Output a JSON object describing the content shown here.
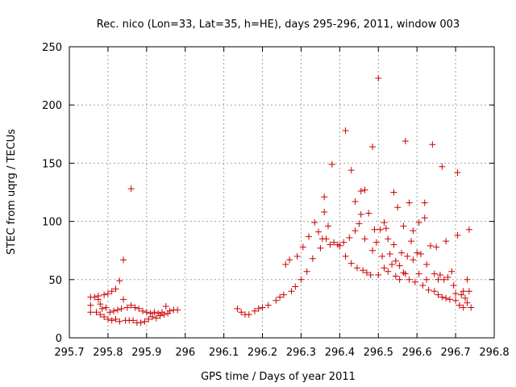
{
  "chart_data": {
    "type": "scatter",
    "title": "Rec. nico (Lon=33, Lat=35, h=HE), days 295-296, 2011, window 003",
    "xlabel": "GPS time / Days of year 2011",
    "ylabel": "STEC from uqrg / TECUs",
    "xlim": [
      295.7,
      296.8
    ],
    "ylim": [
      0,
      250
    ],
    "xticks": [
      "295.7",
      "295.8",
      "295.9",
      "296",
      "296.1",
      "296.2",
      "296.3",
      "296.4",
      "296.5",
      "296.6",
      "296.7",
      "296.8"
    ],
    "yticks": [
      "0",
      "50",
      "100",
      "150",
      "200",
      "250"
    ],
    "grid": true,
    "marker": "+",
    "color": "#cc0000",
    "series": [
      {
        "points": [
          [
            295.755,
            35
          ],
          [
            295.755,
            28
          ],
          [
            295.755,
            22
          ],
          [
            295.765,
            35
          ],
          [
            295.77,
            22
          ],
          [
            295.775,
            33
          ],
          [
            295.775,
            36
          ],
          [
            295.78,
            29
          ],
          [
            295.78,
            20
          ],
          [
            295.785,
            25
          ],
          [
            295.79,
            37
          ],
          [
            295.79,
            18
          ],
          [
            295.795,
            26
          ],
          [
            295.8,
            38
          ],
          [
            295.8,
            16
          ],
          [
            295.805,
            22
          ],
          [
            295.81,
            40
          ],
          [
            295.81,
            15
          ],
          [
            295.815,
            23
          ],
          [
            295.82,
            42
          ],
          [
            295.82,
            16
          ],
          [
            295.825,
            24
          ],
          [
            295.83,
            49
          ],
          [
            295.83,
            14
          ],
          [
            295.835,
            25
          ],
          [
            295.84,
            33
          ],
          [
            295.84,
            67
          ],
          [
            295.845,
            15
          ],
          [
            295.85,
            26
          ],
          [
            295.855,
            15
          ],
          [
            295.86,
            128
          ],
          [
            295.86,
            28
          ],
          [
            295.865,
            15
          ],
          [
            295.87,
            26
          ],
          [
            295.875,
            13
          ],
          [
            295.88,
            25
          ],
          [
            295.885,
            13
          ],
          [
            295.89,
            23
          ],
          [
            295.895,
            14
          ],
          [
            295.9,
            22
          ],
          [
            295.905,
            16
          ],
          [
            295.91,
            21
          ],
          [
            295.915,
            18
          ],
          [
            295.92,
            22
          ],
          [
            295.925,
            17
          ],
          [
            295.93,
            21
          ],
          [
            295.935,
            19
          ],
          [
            295.94,
            22
          ],
          [
            295.945,
            20
          ],
          [
            295.95,
            27
          ],
          [
            295.955,
            21
          ],
          [
            295.96,
            23
          ],
          [
            295.97,
            24
          ],
          [
            295.98,
            24
          ],
          [
            296.135,
            25
          ],
          [
            296.145,
            22
          ],
          [
            296.155,
            20
          ],
          [
            296.165,
            20
          ],
          [
            296.18,
            23
          ],
          [
            296.19,
            25
          ],
          [
            296.2,
            26
          ],
          [
            296.215,
            28
          ],
          [
            296.235,
            32
          ],
          [
            296.245,
            35
          ],
          [
            296.255,
            37
          ],
          [
            296.26,
            63
          ],
          [
            296.27,
            67
          ],
          [
            296.275,
            40
          ],
          [
            296.285,
            44
          ],
          [
            296.29,
            70
          ],
          [
            296.3,
            50
          ],
          [
            296.305,
            78
          ],
          [
            296.315,
            57
          ],
          [
            296.32,
            87
          ],
          [
            296.33,
            68
          ],
          [
            296.335,
            99
          ],
          [
            296.345,
            91
          ],
          [
            296.35,
            77
          ],
          [
            296.355,
            85
          ],
          [
            296.36,
            121
          ],
          [
            296.36,
            108
          ],
          [
            296.365,
            85
          ],
          [
            296.37,
            96
          ],
          [
            296.375,
            80
          ],
          [
            296.38,
            149
          ],
          [
            296.385,
            82
          ],
          [
            296.395,
            80
          ],
          [
            296.4,
            79
          ],
          [
            296.41,
            82
          ],
          [
            296.415,
            178
          ],
          [
            296.415,
            70
          ],
          [
            296.425,
            86
          ],
          [
            296.43,
            144
          ],
          [
            296.43,
            64
          ],
          [
            296.44,
            117
          ],
          [
            296.44,
            92
          ],
          [
            296.445,
            60
          ],
          [
            296.45,
            98
          ],
          [
            296.455,
            126
          ],
          [
            296.455,
            106
          ],
          [
            296.46,
            58
          ],
          [
            296.465,
            127
          ],
          [
            296.465,
            85
          ],
          [
            296.47,
            56
          ],
          [
            296.475,
            107
          ],
          [
            296.48,
            54
          ],
          [
            296.485,
            164
          ],
          [
            296.485,
            75
          ],
          [
            296.49,
            93
          ],
          [
            296.495,
            82
          ],
          [
            296.5,
            223
          ],
          [
            296.5,
            54
          ],
          [
            296.505,
            93
          ],
          [
            296.51,
            70
          ],
          [
            296.515,
            99
          ],
          [
            296.515,
            60
          ],
          [
            296.52,
            94
          ],
          [
            296.525,
            85
          ],
          [
            296.525,
            57
          ],
          [
            296.53,
            72
          ],
          [
            296.535,
            63
          ],
          [
            296.54,
            125
          ],
          [
            296.54,
            80
          ],
          [
            296.545,
            66
          ],
          [
            296.545,
            53
          ],
          [
            296.55,
            112
          ],
          [
            296.555,
            62
          ],
          [
            296.555,
            50
          ],
          [
            296.56,
            73
          ],
          [
            296.565,
            96
          ],
          [
            296.565,
            56
          ],
          [
            296.57,
            169
          ],
          [
            296.57,
            55
          ],
          [
            296.575,
            70
          ],
          [
            296.58,
            116
          ],
          [
            296.58,
            50
          ],
          [
            296.585,
            83
          ],
          [
            296.59,
            92
          ],
          [
            296.59,
            67
          ],
          [
            296.595,
            48
          ],
          [
            296.6,
            73
          ],
          [
            296.605,
            99
          ],
          [
            296.605,
            55
          ],
          [
            296.61,
            72
          ],
          [
            296.615,
            45
          ],
          [
            296.62,
            116
          ],
          [
            296.62,
            103
          ],
          [
            296.625,
            63
          ],
          [
            296.625,
            50
          ],
          [
            296.63,
            41
          ],
          [
            296.635,
            79
          ],
          [
            296.64,
            166
          ],
          [
            296.645,
            55
          ],
          [
            296.645,
            40
          ],
          [
            296.65,
            78
          ],
          [
            296.655,
            50
          ],
          [
            296.655,
            37
          ],
          [
            296.66,
            54
          ],
          [
            296.665,
            147
          ],
          [
            296.665,
            35
          ],
          [
            296.67,
            50
          ],
          [
            296.675,
            83
          ],
          [
            296.675,
            34
          ],
          [
            296.68,
            52
          ],
          [
            296.685,
            33
          ],
          [
            296.69,
            57
          ],
          [
            296.695,
            45
          ],
          [
            296.7,
            38
          ],
          [
            296.7,
            32
          ],
          [
            296.705,
            142
          ],
          [
            296.705,
            88
          ],
          [
            296.71,
            28
          ],
          [
            296.715,
            37
          ],
          [
            296.72,
            40
          ],
          [
            296.72,
            26
          ],
          [
            296.725,
            34
          ],
          [
            296.73,
            50
          ],
          [
            296.73,
            30
          ],
          [
            296.735,
            93
          ],
          [
            296.735,
            40
          ],
          [
            296.74,
            26
          ]
        ]
      }
    ]
  }
}
